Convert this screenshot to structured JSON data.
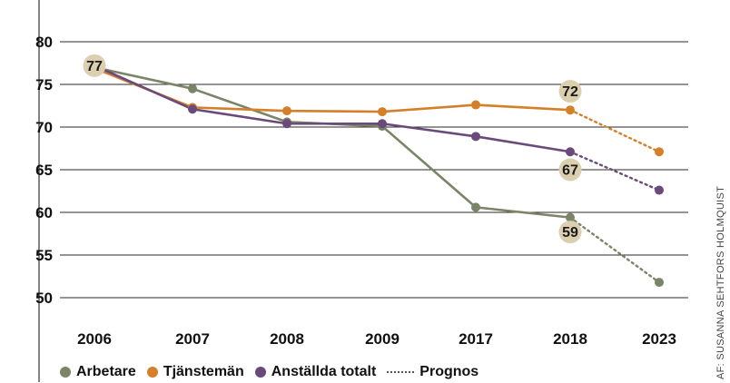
{
  "chart_data": {
    "type": "line",
    "categories": [
      "2006",
      "2007",
      "2008",
      "2009",
      "2017",
      "2018",
      "2023"
    ],
    "y_ticks": [
      "80",
      "75",
      "70",
      "65",
      "60",
      "55",
      "50"
    ],
    "ylim": [
      50,
      80
    ],
    "grid": true,
    "series": [
      {
        "name": "Arbetare",
        "color": "#7a8466",
        "values": [
          77,
          74.5,
          70.6,
          70.1,
          60.6,
          59.4,
          51.8
        ],
        "forecast_from": 5
      },
      {
        "name": "Tjänstemän",
        "color": "#d4802a",
        "values": [
          76.9,
          72.3,
          71.9,
          71.8,
          72.6,
          72.0,
          67.1
        ],
        "forecast_from": 5
      },
      {
        "name": "Anställda totalt",
        "color": "#6a4a7a",
        "values": [
          77.2,
          72.1,
          70.4,
          70.4,
          68.9,
          67.1,
          62.6
        ],
        "forecast_from": 5
      }
    ],
    "annotations": [
      {
        "text": "77",
        "x_index": 0,
        "y": 77.2
      },
      {
        "text": "72",
        "x_index": 5,
        "y": 74.2
      },
      {
        "text": "67",
        "x_index": 5,
        "y": 65.0
      },
      {
        "text": "59",
        "x_index": 5,
        "y": 57.7
      }
    ],
    "legend": {
      "placement": "bottom-left",
      "items": [
        "Arbetare",
        "Tjänstemän",
        "Anställda totalt"
      ],
      "forecast_label": "Prognos",
      "forecast_color": "#555555"
    }
  },
  "credit": "AF: SUSANNA SEHTFORS HOLMQUIST",
  "colors": {
    "grid": "#2a2a2a",
    "bubble": "#dccfb0",
    "axis_left": "#333333"
  }
}
